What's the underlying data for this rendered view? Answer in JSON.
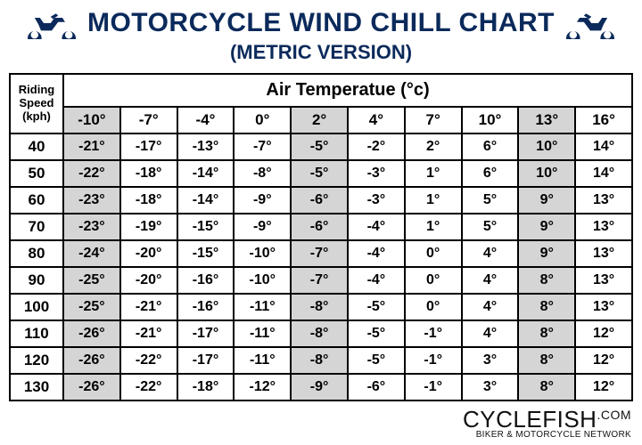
{
  "header": {
    "title": "MOTORCYCLE WIND CHILL CHART",
    "subtitle": "(METRIC VERSION)"
  },
  "table": {
    "row_header_lines": [
      "Riding",
      "Speed",
      "(kph)"
    ],
    "air_temp_label": "Air Temperatue (°c)",
    "temp_columns": [
      "-10°",
      "-7°",
      "-4°",
      "0°",
      "2°",
      "4°",
      "7°",
      "10°",
      "13°",
      "16°"
    ],
    "shaded_col_indices": [
      0,
      4,
      8
    ],
    "speeds": [
      "40",
      "50",
      "60",
      "70",
      "80",
      "90",
      "100",
      "110",
      "120",
      "130"
    ],
    "rows": [
      [
        "-21°",
        "-17°",
        "-13°",
        "-7°",
        "-5°",
        "-2°",
        "2°",
        "6°",
        "10°",
        "14°"
      ],
      [
        "-22°",
        "-18°",
        "-14°",
        "-8°",
        "-5°",
        "-3°",
        "1°",
        "6°",
        "10°",
        "14°"
      ],
      [
        "-23°",
        "-18°",
        "-14°",
        "-9°",
        "-6°",
        "-3°",
        "1°",
        "5°",
        "9°",
        "13°"
      ],
      [
        "-23°",
        "-19°",
        "-15°",
        "-9°",
        "-6°",
        "-4°",
        "1°",
        "5°",
        "9°",
        "13°"
      ],
      [
        "-24°",
        "-20°",
        "-15°",
        "-10°",
        "-7°",
        "-4°",
        "0°",
        "4°",
        "9°",
        "13°"
      ],
      [
        "-25°",
        "-20°",
        "-16°",
        "-10°",
        "-7°",
        "-4°",
        "0°",
        "4°",
        "8°",
        "13°"
      ],
      [
        "-25°",
        "-21°",
        "-16°",
        "-11°",
        "-8°",
        "-5°",
        "0°",
        "4°",
        "8°",
        "13°"
      ],
      [
        "-26°",
        "-21°",
        "-17°",
        "-11°",
        "-8°",
        "-5°",
        "-1°",
        "4°",
        "8°",
        "12°"
      ],
      [
        "-26°",
        "-22°",
        "-17°",
        "-11°",
        "-8°",
        "-5°",
        "-1°",
        "3°",
        "8°",
        "12°"
      ],
      [
        "-26°",
        "-22°",
        "-18°",
        "-12°",
        "-9°",
        "-6°",
        "-1°",
        "3°",
        "8°",
        "12°"
      ]
    ]
  },
  "footer": {
    "brand_main": "CYCLEFISH",
    "brand_tld": ".COM",
    "brand_sub": "BIKER & MOTORCYCLE NETWORK"
  },
  "style": {
    "title_color": "#0b2a5b",
    "border_color": "#000000",
    "shaded_bg": "#d5d5d5",
    "page_bg": "#ffffff",
    "title_fontsize": 30,
    "subtitle_fontsize": 22,
    "cell_fontsize": 16,
    "brand_color": "#111111"
  }
}
